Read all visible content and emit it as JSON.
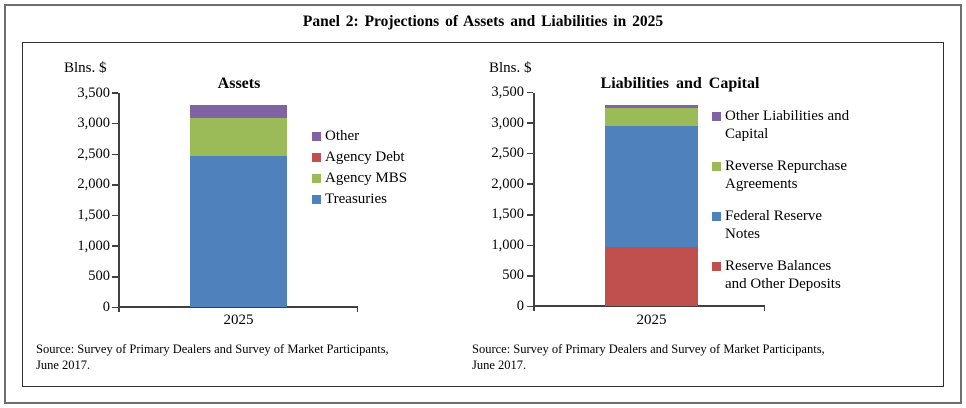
{
  "panel_title": "Panel 2: Projections of Assets and Liabilities in 2025",
  "chart_data": [
    {
      "type": "bar",
      "stacked": true,
      "title": "Assets",
      "axis_units_label": "Blns. $",
      "categories": [
        "2025"
      ],
      "ylim": [
        0,
        3500
      ],
      "ytick_step": 500,
      "ytick_labels": [
        "0",
        "500",
        "1,000",
        "1,500",
        "2,000",
        "2,500",
        "3,000",
        "3,500"
      ],
      "grid": false,
      "legend_position": "right",
      "series": [
        {
          "name": "Treasuries",
          "color": "#4F81BD",
          "values": [
            2475
          ]
        },
        {
          "name": "Agency Debt",
          "color": "#C0504D",
          "values": [
            0
          ]
        },
        {
          "name": "Agency MBS",
          "color": "#9BBB59",
          "values": [
            625
          ]
        },
        {
          "name": "Other",
          "color": "#8064A2",
          "values": [
            200
          ]
        }
      ],
      "legend": [
        {
          "series_name": "Other",
          "label_lines": [
            "Other"
          ]
        },
        {
          "series_name": "Agency Debt",
          "label_lines": [
            "Agency Debt"
          ]
        },
        {
          "series_name": "Agency MBS",
          "label_lines": [
            "Agency MBS"
          ]
        },
        {
          "series_name": "Treasuries",
          "label_lines": [
            "Treasuries"
          ]
        }
      ],
      "source_line1": "Source: Survey of Primary Dealers and Survey of Market Participants,",
      "source_line2": "June 2017."
    },
    {
      "type": "bar",
      "stacked": true,
      "title": "Liabilities and Capital",
      "axis_units_label": "Blns. $",
      "categories": [
        "2025"
      ],
      "ylim": [
        0,
        3500
      ],
      "ytick_step": 500,
      "ytick_labels": [
        "0",
        "500",
        "1,000",
        "1,500",
        "2,000",
        "2,500",
        "3,000",
        "3,500"
      ],
      "grid": false,
      "legend_position": "right",
      "series": [
        {
          "name": "Reserve Balances and Other Deposits",
          "color": "#C0504D",
          "values": [
            975
          ]
        },
        {
          "name": "Federal Reserve Notes",
          "color": "#4F81BD",
          "values": [
            1975
          ]
        },
        {
          "name": "Reverse Repurchase Agreements",
          "color": "#9BBB59",
          "values": [
            300
          ]
        },
        {
          "name": "Other Liabilities and Capital",
          "color": "#8064A2",
          "values": [
            50
          ]
        }
      ],
      "legend": [
        {
          "series_name": "Other Liabilities and Capital",
          "label_lines": [
            "Other Liabilities and",
            "Capital"
          ]
        },
        {
          "series_name": "Reverse Repurchase Agreements",
          "label_lines": [
            "Reverse Repurchase",
            "Agreements"
          ]
        },
        {
          "series_name": "Federal Reserve Notes",
          "label_lines": [
            "Federal Reserve",
            "Notes"
          ]
        },
        {
          "series_name": "Reserve Balances and Other Deposits",
          "label_lines": [
            "Reserve Balances",
            "and Other Deposits"
          ]
        }
      ],
      "source_line1": "Source: Survey of Primary Dealers and Survey of Market Participants,",
      "source_line2": "June 2017."
    }
  ]
}
